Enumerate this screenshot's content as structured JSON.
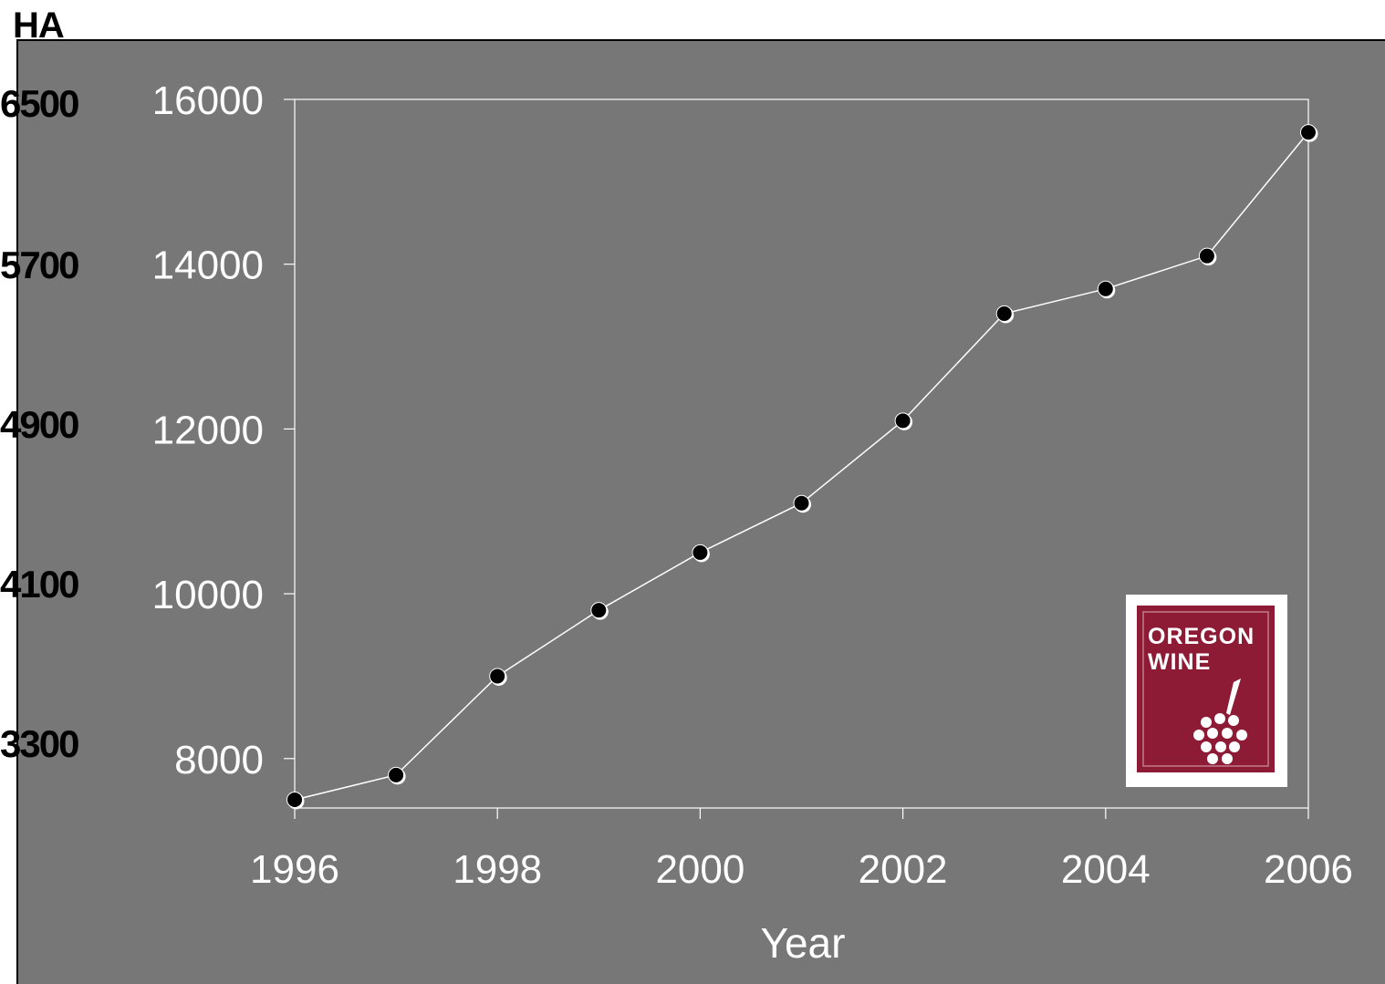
{
  "secondary_axis": {
    "label": "HA",
    "ticks": [
      "6500",
      "5700",
      "4900",
      "4100",
      "3300"
    ]
  },
  "logo": {
    "text_line1": "OREGON",
    "text_line2": "WINE",
    "color": "#8e1b35"
  },
  "colors": {
    "background": "#777777",
    "line": "#ffffff",
    "marker": "#000000",
    "text": "#ffffff"
  },
  "chart_data": {
    "type": "line",
    "title": "",
    "xlabel": "Year",
    "ylabel": "",
    "xlim": [
      1996,
      2006
    ],
    "ylim": [
      7400,
      16000
    ],
    "x_ticks": [
      "1996",
      "1998",
      "2000",
      "2002",
      "2004",
      "2006"
    ],
    "y_ticks": [
      "16000",
      "14000",
      "12000",
      "10000",
      "8000"
    ],
    "grid": false,
    "legend": "none",
    "series": [
      {
        "x": [
          1996,
          1997,
          1998,
          1999,
          2000,
          2001,
          2002,
          2003,
          2004,
          2005,
          2006
        ],
        "values": [
          7500,
          7800,
          9000,
          9800,
          10500,
          11100,
          12100,
          13400,
          13700,
          14100,
          15600
        ]
      }
    ]
  }
}
